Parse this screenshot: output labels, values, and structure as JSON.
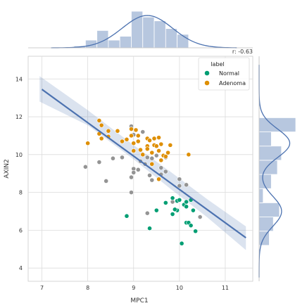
{
  "chart_data": {
    "type": "scatter",
    "annotation": "r: -0.63",
    "xlabel": "MPC1",
    "ylabel": "AXIN2",
    "xlim": [
      6.7,
      11.6
    ],
    "ylim": [
      3.3,
      15.2
    ],
    "xticks": [
      7,
      8,
      9,
      10,
      11
    ],
    "yticks": [
      4,
      6,
      8,
      10,
      12,
      14
    ],
    "grid": true,
    "legend": {
      "title": "label",
      "placement": "top-right",
      "entries": [
        {
          "label": "Normal",
          "color": "#009e73"
        },
        {
          "label": "Adenoma",
          "color": "#de8f05"
        }
      ]
    },
    "series": [
      {
        "name": "Normal",
        "color": "#009e73",
        "points": [
          [
            9.35,
            6.1
          ],
          [
            8.85,
            6.75
          ],
          [
            9.5,
            7.05
          ],
          [
            9.7,
            7.45
          ],
          [
            9.85,
            7.7
          ],
          [
            9.95,
            7.55
          ],
          [
            10.0,
            7.6
          ],
          [
            10.1,
            7.35
          ],
          [
            10.15,
            7.5
          ],
          [
            10.25,
            7.6
          ],
          [
            10.3,
            7.05
          ],
          [
            9.95,
            7.05
          ],
          [
            9.85,
            6.85
          ],
          [
            10.15,
            6.4
          ],
          [
            10.2,
            6.4
          ],
          [
            10.25,
            6.25
          ],
          [
            10.35,
            5.95
          ],
          [
            10.05,
            5.3
          ],
          [
            9.9,
            7.1
          ],
          [
            10.15,
            7.25
          ]
        ]
      },
      {
        "name": "Adenoma",
        "color": "#de8f05",
        "points": [
          [
            8.25,
            11.8
          ],
          [
            8.3,
            11.55
          ],
          [
            8.25,
            11.1
          ],
          [
            8.45,
            11.25
          ],
          [
            8.3,
            10.85
          ],
          [
            8.45,
            10.95
          ],
          [
            8.65,
            11.25
          ],
          [
            8.95,
            11.35
          ],
          [
            9.05,
            11.3
          ],
          [
            8.95,
            11.0
          ],
          [
            9.1,
            11.0
          ],
          [
            8.75,
            10.7
          ],
          [
            8.85,
            10.8
          ],
          [
            9.0,
            10.6
          ],
          [
            9.1,
            10.7
          ],
          [
            9.3,
            10.85
          ],
          [
            9.35,
            10.75
          ],
          [
            9.45,
            10.85
          ],
          [
            9.55,
            10.9
          ],
          [
            9.6,
            10.55
          ],
          [
            9.45,
            10.5
          ],
          [
            9.3,
            10.45
          ],
          [
            9.15,
            10.25
          ],
          [
            9.0,
            10.2
          ],
          [
            9.2,
            10.0
          ],
          [
            9.4,
            10.1
          ],
          [
            9.55,
            10.2
          ],
          [
            9.65,
            9.95
          ],
          [
            9.75,
            10.1
          ],
          [
            9.8,
            10.5
          ],
          [
            9.6,
            9.7
          ],
          [
            9.4,
            9.5
          ],
          [
            8.0,
            10.6
          ],
          [
            10.2,
            10.0
          ],
          [
            9.55,
            8.7
          ],
          [
            9.3,
            10.3
          ],
          [
            9.5,
            10.45
          ],
          [
            9.7,
            9.9
          ]
        ]
      },
      {
        "name": "",
        "color": "#949494",
        "points": [
          [
            7.95,
            9.35
          ],
          [
            8.25,
            9.6
          ],
          [
            8.4,
            8.6
          ],
          [
            8.55,
            9.8
          ],
          [
            8.75,
            9.85
          ],
          [
            8.95,
            11.5
          ],
          [
            8.95,
            8.8
          ],
          [
            8.95,
            8.0
          ],
          [
            9.0,
            9.25
          ],
          [
            9.0,
            9.05
          ],
          [
            9.1,
            9.2
          ],
          [
            9.15,
            9.65
          ],
          [
            9.25,
            9.5
          ],
          [
            9.3,
            9.85
          ],
          [
            9.4,
            9.8
          ],
          [
            9.35,
            8.9
          ],
          [
            9.4,
            8.65
          ],
          [
            9.5,
            9.95
          ],
          [
            9.6,
            9.3
          ],
          [
            9.6,
            8.95
          ],
          [
            9.7,
            9.1
          ],
          [
            9.85,
            7.5
          ],
          [
            10.0,
            8.35
          ],
          [
            10.0,
            8.7
          ],
          [
            10.15,
            8.4
          ],
          [
            10.45,
            6.7
          ],
          [
            9.7,
            9.85
          ],
          [
            9.2,
            11.2
          ],
          [
            9.3,
            6.9
          ],
          [
            9.0,
            11.05
          ]
        ]
      }
    ],
    "regression": {
      "x": [
        7.0,
        11.45
      ],
      "y": [
        13.45,
        5.6
      ]
    },
    "marginal_x_hist": {
      "bin_edges": [
        7.7,
        7.95,
        8.2,
        8.45,
        8.7,
        8.95,
        9.2,
        9.45,
        9.7,
        9.95,
        10.2
      ],
      "counts": [
        1,
        4,
        9,
        4,
        6,
        19,
        16,
        14,
        10,
        7
      ]
    },
    "marginal_y_hist": {
      "bin_edges": [
        5.2,
        5.95,
        6.7,
        7.45,
        8.2,
        8.95,
        9.7,
        10.45,
        11.2,
        11.95
      ],
      "counts": [
        5,
        7,
        10,
        2,
        6,
        9,
        11,
        6,
        18
      ]
    }
  }
}
